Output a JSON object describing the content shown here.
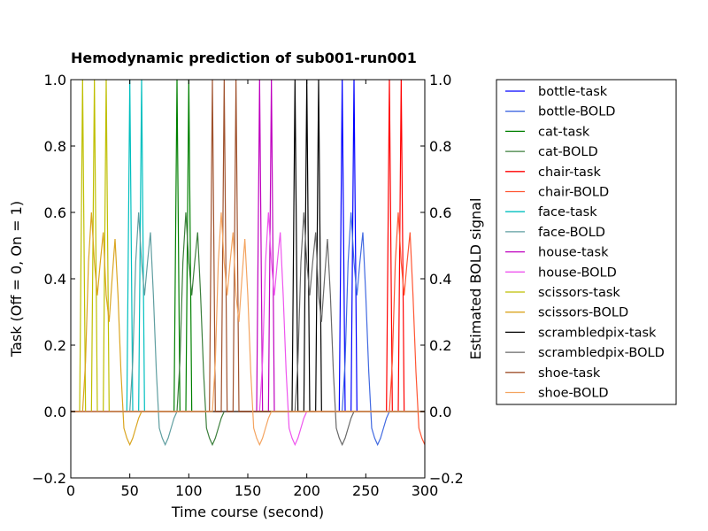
{
  "chart_data": {
    "type": "line",
    "title": "Hemodynamic prediction of sub001-run001",
    "xlabel": "Time course (second)",
    "ylabel_left": "Task (Off = 0, On = 1)",
    "ylabel_right": "Estimated BOLD signal",
    "xlim": [
      0,
      300
    ],
    "ylim": [
      -0.2,
      1.0
    ],
    "x_ticks": [
      "0",
      "50",
      "100",
      "150",
      "200",
      "250",
      "300"
    ],
    "y_ticks": [
      "−0.2",
      "0.0",
      "0.2",
      "0.4",
      "0.6",
      "0.8",
      "1.0"
    ],
    "grid": false,
    "legend_position": "outside-right",
    "block_length": 2.5,
    "bold_shape": [
      0,
      0.15,
      0.45,
      0.6,
      0.45,
      0.2,
      0.0,
      -0.06,
      -0.1,
      -0.08,
      -0.05,
      -0.02,
      0
    ],
    "bold_dt": 2.5,
    "series": [
      {
        "name": "bottle-task",
        "color": "#0000ff",
        "kind": "task",
        "onsets": [
          230,
          240
        ]
      },
      {
        "name": "bottle-BOLD",
        "color": "#4169e1",
        "kind": "bold",
        "onsets": [
          230,
          240
        ]
      },
      {
        "name": "cat-task",
        "color": "#008000",
        "kind": "task",
        "onsets": [
          90,
          100
        ]
      },
      {
        "name": "cat-BOLD",
        "color": "#3c7f3c",
        "kind": "bold",
        "onsets": [
          90,
          100
        ]
      },
      {
        "name": "chair-task",
        "color": "#ff0000",
        "kind": "task",
        "onsets": [
          270,
          280
        ]
      },
      {
        "name": "chair-BOLD",
        "color": "#ff5533",
        "kind": "bold",
        "onsets": [
          270,
          280
        ]
      },
      {
        "name": "face-task",
        "color": "#00bfbf",
        "kind": "task",
        "onsets": [
          50,
          60
        ]
      },
      {
        "name": "face-BOLD",
        "color": "#5f9ea0",
        "kind": "bold",
        "onsets": [
          50,
          60
        ]
      },
      {
        "name": "house-task",
        "color": "#bf00bf",
        "kind": "task",
        "onsets": [
          160,
          170
        ]
      },
      {
        "name": "house-BOLD",
        "color": "#ee55ee",
        "kind": "bold",
        "onsets": [
          160,
          170
        ]
      },
      {
        "name": "scissors-task",
        "color": "#bfbf00",
        "kind": "task",
        "onsets": [
          10,
          20,
          30
        ]
      },
      {
        "name": "scissors-BOLD",
        "color": "#daa520",
        "kind": "bold",
        "onsets": [
          10,
          20,
          30
        ]
      },
      {
        "name": "scrambledpix-task",
        "color": "#000000",
        "kind": "task",
        "onsets": [
          190,
          200,
          210
        ]
      },
      {
        "name": "scrambledpix-BOLD",
        "color": "#696969",
        "kind": "bold",
        "onsets": [
          190,
          200,
          210
        ]
      },
      {
        "name": "shoe-task",
        "color": "#a0522d",
        "kind": "task",
        "onsets": [
          120,
          130,
          140
        ]
      },
      {
        "name": "shoe-BOLD",
        "color": "#f4a460",
        "kind": "bold",
        "onsets": [
          120,
          130,
          140
        ]
      }
    ]
  }
}
